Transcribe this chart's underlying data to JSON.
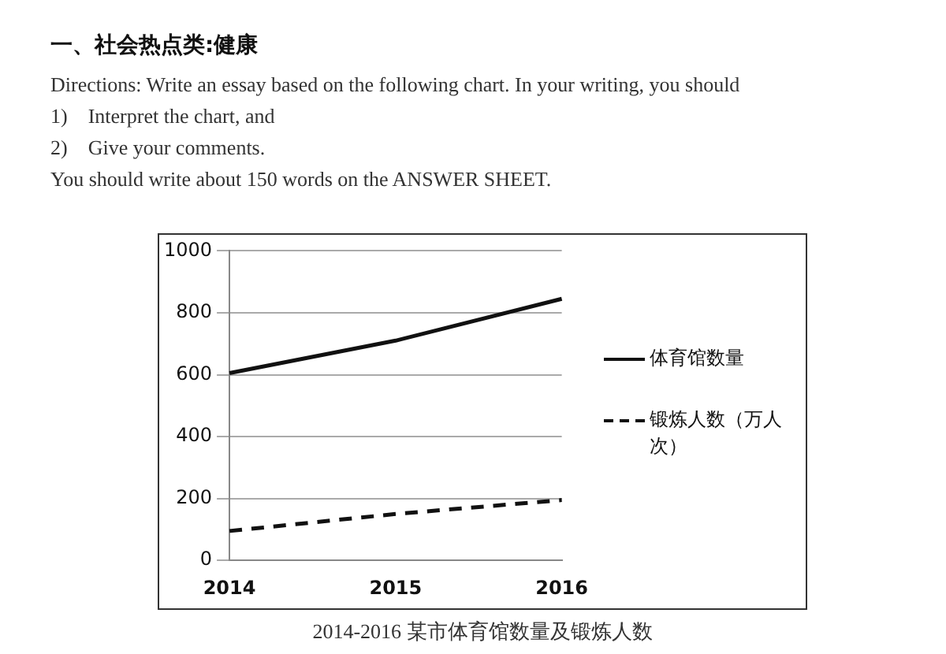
{
  "chart_data": {
    "type": "line",
    "title": "一、社会热点类:健康",
    "annotations": [
      "Directions: Write an essay based on the following chart. In your writing, you should",
      "1)    Interpret the chart, and",
      "2)    Give your comments.",
      "You should write about 150 words on the ANSWER SHEET.",
      "2014-2016 某市体育馆数量及锻炼人数"
    ],
    "categories": [
      "2014",
      "2015",
      "2016"
    ],
    "series": [
      {
        "name": "体育馆数量",
        "color": "#111111",
        "values": [
          605,
          710,
          845
        ],
        "line_style": "solid"
      },
      {
        "name": "锻炼人数（万人次）",
        "color": "#111111",
        "values": [
          95,
          150,
          195
        ],
        "line_style": "dashed"
      }
    ],
    "ylim": [
      0,
      1000
    ],
    "yticks": [
      0,
      200,
      400,
      600,
      800,
      1000
    ],
    "grid": "y",
    "legend": "right",
    "marker": "none"
  }
}
